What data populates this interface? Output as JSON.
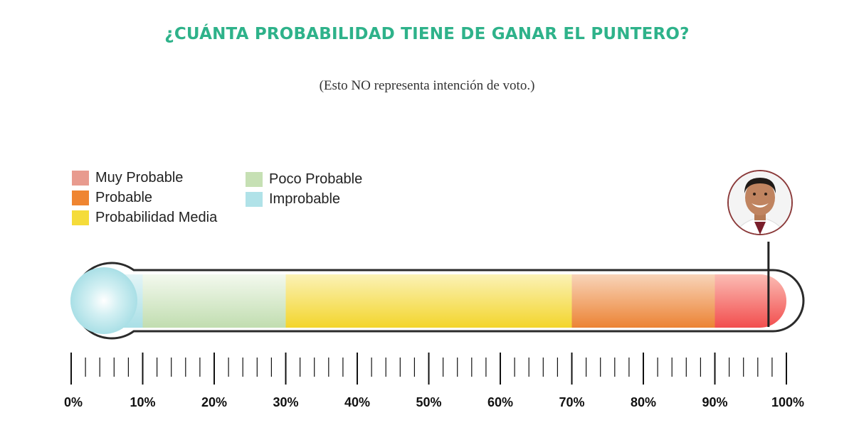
{
  "chart_data": {
    "type": "bar",
    "title": "¿CUÁNTA PROBABILIDAD TIENE DE GANAR EL PUNTERO?",
    "subtitle": "(Esto NO representa intención de voto.)",
    "xlim": [
      0,
      100
    ],
    "tick_labels": [
      "0%",
      "10%",
      "20%",
      "30%",
      "40%",
      "50%",
      "60%",
      "70%",
      "80%",
      "90%",
      "100%"
    ],
    "segments": [
      {
        "category": "Improbable",
        "from": 0,
        "to": 10,
        "color": "#b0e2e8"
      },
      {
        "category": "Poco Probable",
        "from": 10,
        "to": 30,
        "color": "#c5dfb5"
      },
      {
        "category": "Probabilidad Media",
        "from": 30,
        "to": 70,
        "color": "#f5dc3a"
      },
      {
        "category": "Probable",
        "from": 70,
        "to": 90,
        "color": "#ee8a3c"
      },
      {
        "category": "Muy Probable",
        "from": 90,
        "to": 100,
        "color": "#f25b5b"
      }
    ],
    "marker_value": 97
  },
  "legend": [
    {
      "label": "Muy Probable",
      "color": "#e89b8f"
    },
    {
      "label": "Probable",
      "color": "#ef8531"
    },
    {
      "label": "Probabilidad Media",
      "color": "#f5dc3a"
    },
    {
      "label": "Poco Probable",
      "color": "#c6e0b4"
    },
    {
      "label": "Improbable",
      "color": "#b0e2e8"
    }
  ],
  "marker": {
    "icon": "candidate-avatar-icon"
  }
}
